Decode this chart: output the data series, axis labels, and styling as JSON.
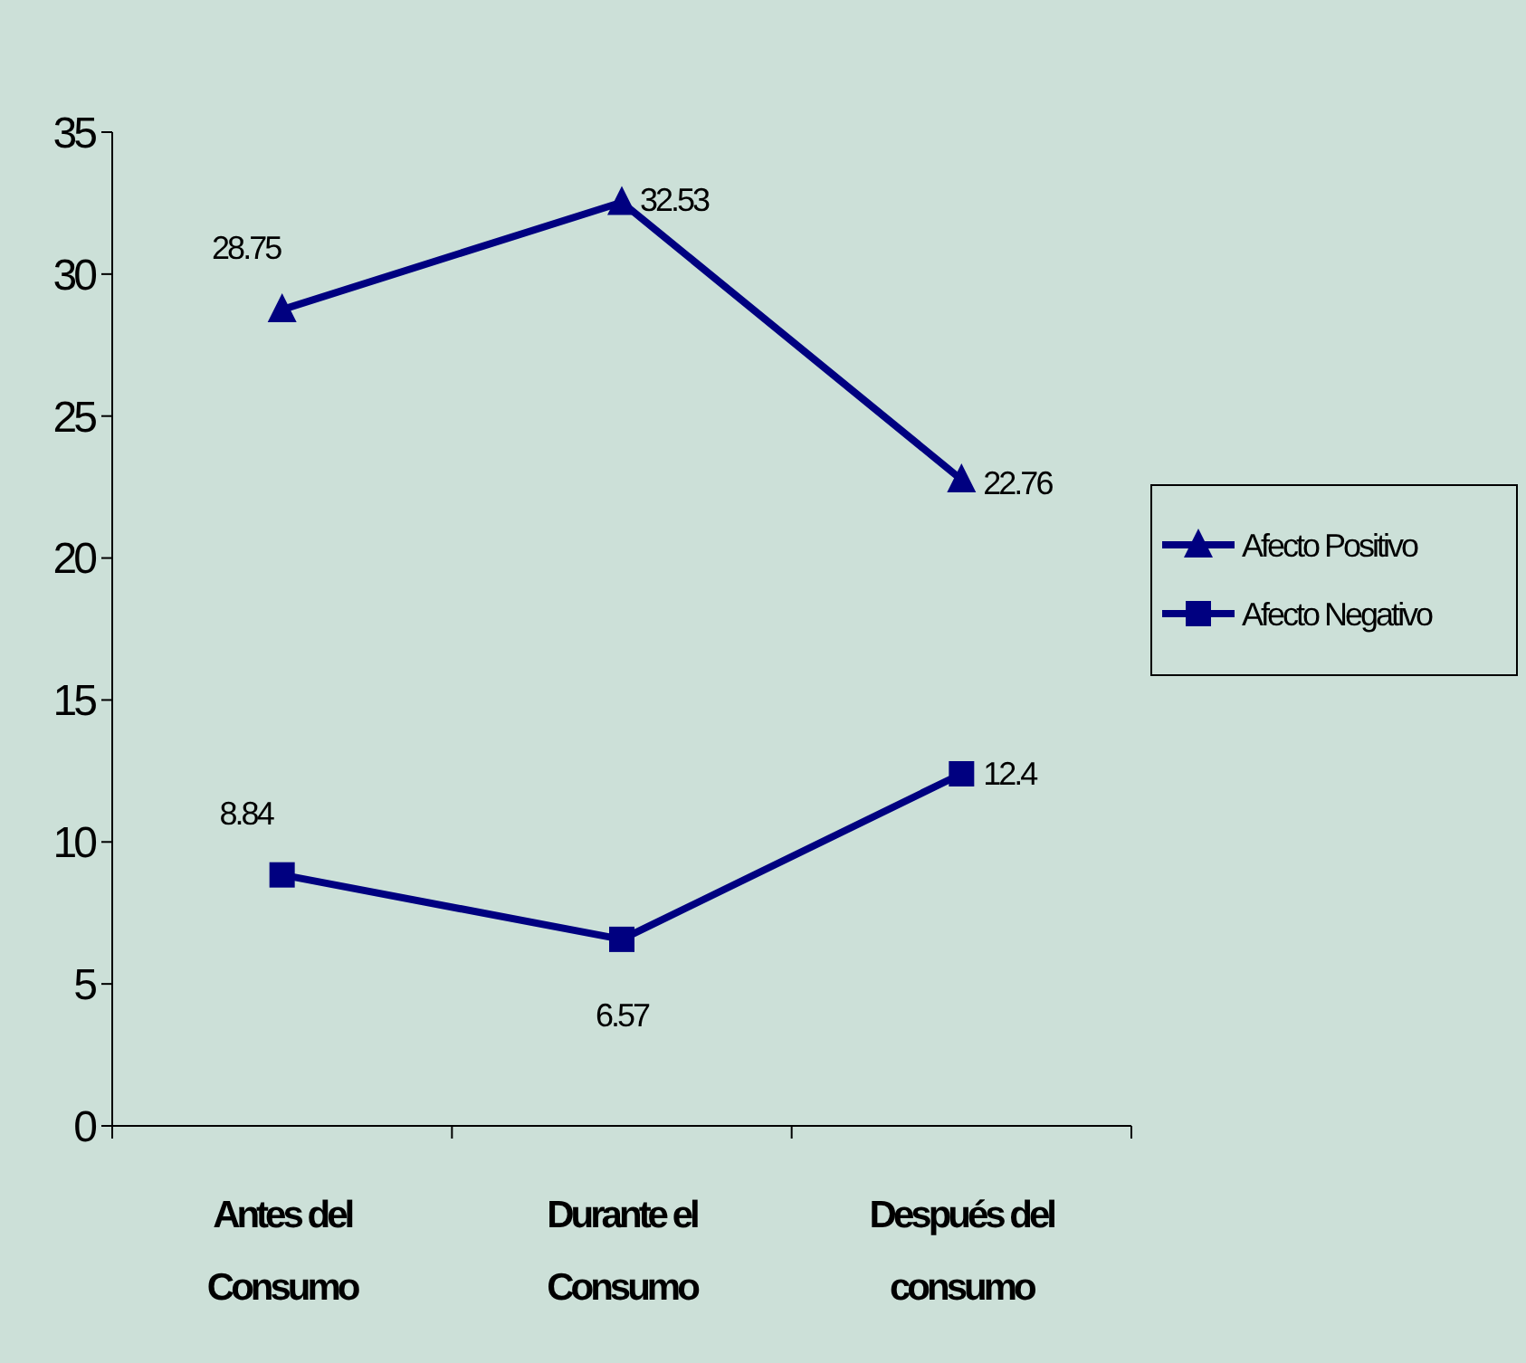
{
  "chart_data": {
    "type": "line",
    "categories": [
      "Antes del Consumo",
      "Durante el Consumo",
      "Después del consumo"
    ],
    "series": [
      {
        "name": "Afecto Positivo",
        "color": "#000080",
        "values": [
          28.75,
          32.53,
          22.76
        ],
        "marker": "triangle"
      },
      {
        "name": "Afecto Negativo",
        "color": "#000080",
        "values": [
          8.84,
          6.57,
          12.4
        ],
        "marker": "square"
      }
    ],
    "ylim": [
      0,
      35
    ],
    "yticks": [
      0,
      5,
      10,
      15,
      20,
      25,
      30,
      35
    ],
    "grid": false,
    "legend": "right",
    "data_labels": true,
    "line_style": "solid"
  }
}
